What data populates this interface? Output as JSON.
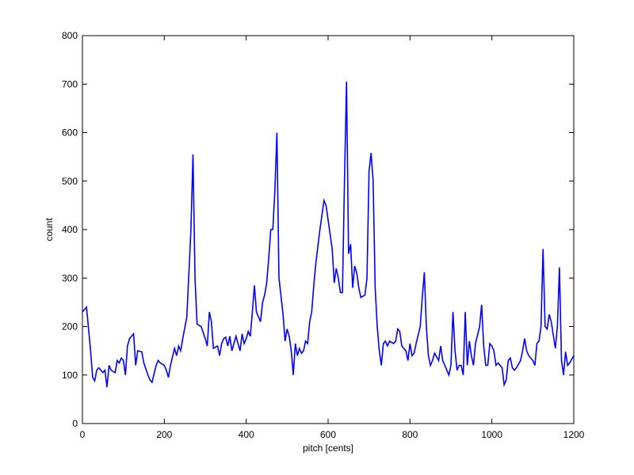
{
  "chart_data": {
    "type": "line",
    "xlabel": "pitch [cents]",
    "ylabel": "count",
    "xlim": [
      0,
      1200
    ],
    "xticks": [
      0,
      200,
      400,
      600,
      800,
      1000,
      1200
    ],
    "ylim": [
      0,
      800
    ],
    "yticks": [
      0,
      100,
      200,
      300,
      400,
      500,
      600,
      700,
      800
    ],
    "series": [
      {
        "color": "#0000ff",
        "x": [
          0,
          10,
          20,
          25,
          30,
          35,
          40,
          50,
          55,
          60,
          65,
          70,
          80,
          85,
          90,
          95,
          100,
          105,
          110,
          115,
          120,
          125,
          130,
          135,
          145,
          150,
          160,
          165,
          170,
          180,
          185,
          190,
          200,
          205,
          210,
          215,
          225,
          230,
          235,
          240,
          245,
          255,
          265,
          270,
          275,
          280,
          290,
          300,
          305,
          310,
          315,
          320,
          330,
          335,
          340,
          345,
          350,
          355,
          360,
          365,
          370,
          375,
          380,
          385,
          390,
          395,
          400,
          405,
          410,
          415,
          420,
          425,
          430,
          435,
          440,
          445,
          450,
          455,
          460,
          465,
          470,
          475,
          480,
          490,
          495,
          500,
          505,
          510,
          515,
          520,
          525,
          530,
          535,
          540,
          545,
          550,
          555,
          560,
          565,
          570,
          580,
          590,
          595,
          600,
          610,
          615,
          620,
          625,
          630,
          635,
          640,
          645,
          650,
          655,
          660,
          665,
          670,
          675,
          680,
          690,
          695,
          700,
          705,
          710,
          715,
          720,
          725,
          730,
          735,
          740,
          745,
          750,
          760,
          765,
          770,
          775,
          780,
          790,
          795,
          800,
          805,
          810,
          815,
          825,
          830,
          835,
          840,
          845,
          850,
          855,
          860,
          870,
          875,
          880,
          890,
          895,
          900,
          905,
          910,
          915,
          920,
          925,
          930,
          935,
          940,
          945,
          950,
          955,
          960,
          970,
          975,
          980,
          985,
          990,
          995,
          1000,
          1005,
          1010,
          1015,
          1025,
          1030,
          1035,
          1040,
          1045,
          1050,
          1055,
          1060,
          1070,
          1075,
          1080,
          1085,
          1090,
          1100,
          1105,
          1110,
          1115,
          1120,
          1125,
          1130,
          1135,
          1140,
          1145,
          1155,
          1160,
          1165,
          1170,
          1175,
          1180,
          1185,
          1190,
          1200
        ],
        "values": [
          230,
          240,
          150,
          95,
          88,
          110,
          115,
          105,
          110,
          75,
          120,
          110,
          105,
          130,
          125,
          135,
          130,
          100,
          160,
          175,
          180,
          185,
          120,
          150,
          148,
          125,
          100,
          90,
          85,
          120,
          130,
          125,
          120,
          110,
          95,
          120,
          155,
          140,
          160,
          150,
          175,
          220,
          400,
          555,
          300,
          205,
          200,
          175,
          160,
          230,
          210,
          155,
          160,
          140,
          165,
          175,
          178,
          160,
          180,
          150,
          165,
          180,
          165,
          150,
          185,
          165,
          175,
          190,
          180,
          230,
          285,
          230,
          220,
          210,
          250,
          265,
          290,
          340,
          400,
          400,
          480,
          600,
          300,
          225,
          170,
          195,
          180,
          150,
          100,
          165,
          140,
          155,
          145,
          150,
          170,
          165,
          210,
          230,
          285,
          330,
          400,
          460,
          450,
          420,
          360,
          290,
          320,
          300,
          270,
          270,
          500,
          705,
          350,
          370,
          280,
          325,
          310,
          280,
          260,
          265,
          300,
          520,
          558,
          500,
          280,
          200,
          150,
          120,
          165,
          170,
          160,
          170,
          165,
          170,
          195,
          190,
          160,
          150,
          130,
          165,
          140,
          145,
          165,
          200,
          260,
          312,
          200,
          140,
          120,
          130,
          145,
          130,
          160,
          130,
          110,
          100,
          120,
          230,
          150,
          110,
          120,
          120,
          100,
          230,
          120,
          170,
          140,
          120,
          165,
          200,
          245,
          160,
          120,
          120,
          165,
          160,
          150,
          120,
          125,
          115,
          80,
          90,
          130,
          135,
          115,
          110,
          115,
          130,
          150,
          175,
          150,
          140,
          130,
          120,
          165,
          170,
          200,
          360,
          200,
          195,
          225,
          210,
          155,
          200,
          322,
          130,
          100,
          148,
          120,
          125,
          140
        ]
      }
    ]
  }
}
